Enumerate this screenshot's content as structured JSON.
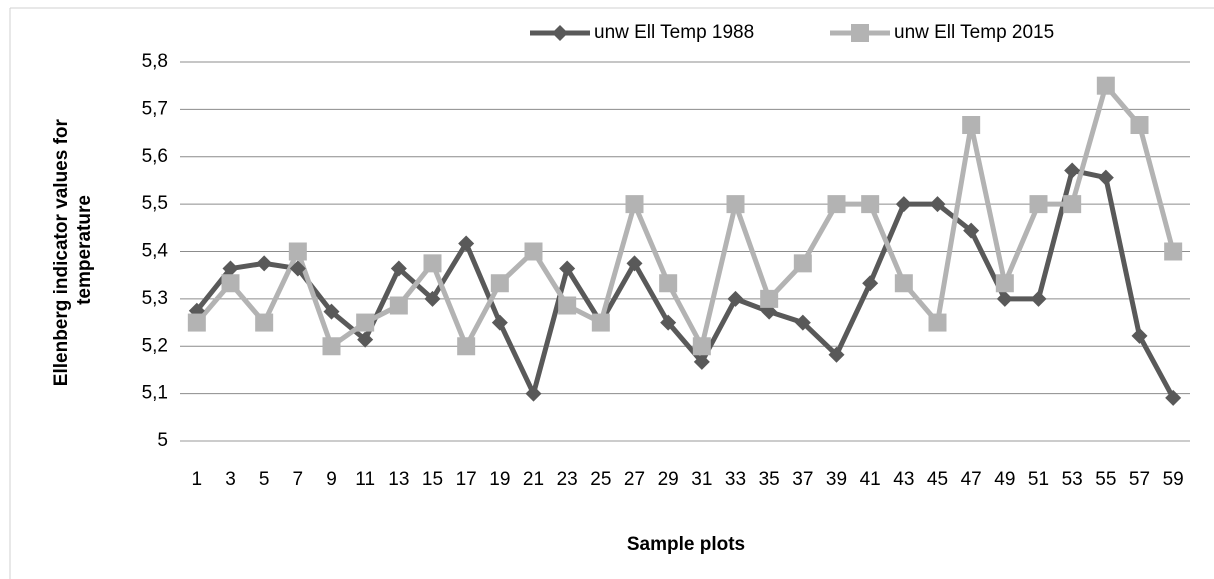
{
  "chart_data": {
    "type": "line",
    "ylabel": [
      "Ellenberg indicator values for",
      "temperature"
    ],
    "xlabel": "Sample plots",
    "categories": [
      "1",
      "3",
      "5",
      "7",
      "9",
      "11",
      "13",
      "15",
      "17",
      "19",
      "21",
      "23",
      "25",
      "27",
      "29",
      "31",
      "33",
      "35",
      "37",
      "39",
      "41",
      "43",
      "45",
      "47",
      "49",
      "51",
      "53",
      "55",
      "57",
      "59"
    ],
    "series": [
      {
        "name": "unw Ell Temp 1988",
        "color": "#595959",
        "marker": "diamond",
        "values": [
          5.275,
          5.364,
          5.375,
          5.364,
          5.273,
          5.214,
          5.364,
          5.3,
          5.417,
          5.25,
          5.1,
          5.364,
          5.25,
          5.375,
          5.25,
          5.167,
          5.3,
          5.273,
          5.25,
          5.182,
          5.333,
          5.5,
          5.5,
          5.444,
          5.3,
          5.3,
          5.571,
          5.556,
          5.222,
          5.091
        ]
      },
      {
        "name": "unw Ell Temp 2015",
        "color": "#b3b3b3",
        "marker": "square",
        "values": [
          5.25,
          5.333,
          5.25,
          5.4,
          5.2,
          5.25,
          5.286,
          5.375,
          5.2,
          5.333,
          5.4,
          5.286,
          5.25,
          5.5,
          5.333,
          5.2,
          5.5,
          5.3,
          5.375,
          5.5,
          5.5,
          5.333,
          5.25,
          5.667,
          5.333,
          5.5,
          5.5,
          5.75,
          5.667,
          5.4
        ]
      }
    ],
    "ylim": [
      5,
      5.8
    ],
    "yticks": [
      5,
      {
        "value": 5.1,
        "label": "5,1"
      },
      {
        "value": 5.2,
        "label": "5,2"
      },
      {
        "value": 5.3,
        "label": "5,3"
      },
      {
        "value": 5.4,
        "label": "5,4"
      },
      {
        "value": 5.5,
        "label": "5,5"
      },
      {
        "value": 5.6,
        "label": "5,6"
      },
      {
        "value": 5.7,
        "label": "5,7"
      },
      {
        "value": 5.8,
        "label": "5,8"
      }
    ],
    "grid": true,
    "legend": "top"
  }
}
